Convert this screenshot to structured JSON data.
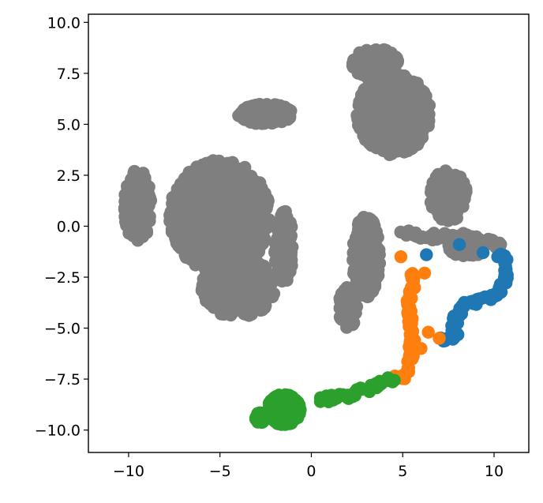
{
  "chart_data": {
    "type": "scatter",
    "title": "",
    "xlabel": "",
    "ylabel": "",
    "xlim": [
      -12.2,
      11.9
    ],
    "ylim": [
      -11.1,
      10.4
    ],
    "x_ticks": [
      -10,
      -5,
      0,
      5,
      10
    ],
    "x_tick_labels": [
      "−10",
      "−5",
      "0",
      "5",
      "10"
    ],
    "y_ticks": [
      -10.0,
      -7.5,
      -5.0,
      -2.5,
      0.0,
      2.5,
      5.0,
      7.5,
      10.0
    ],
    "y_tick_labels": [
      "−10.0",
      "−7.5",
      "−5.0",
      "−2.5",
      "0.0",
      "2.5",
      "5.0",
      "7.5",
      "10.0"
    ],
    "grid": false,
    "legend": "none",
    "series": [
      {
        "color": "#7f7f7f",
        "regions": [
          {
            "center": [
              -5.0,
              0.5
            ],
            "spread": [
              5.5,
              5.5
            ],
            "count": 1100
          },
          {
            "center": [
              -4.0,
              -3.0
            ],
            "spread": [
              4.0,
              3.0
            ],
            "count": 300
          },
          {
            "center": [
              -9.5,
              1.0
            ],
            "spread": [
              1.5,
              3.5
            ],
            "count": 150
          },
          {
            "center": [
              -2.5,
              5.5
            ],
            "spread": [
              3.0,
              1.0
            ],
            "count": 120
          },
          {
            "center": [
              -1.5,
              -1.0
            ],
            "spread": [
              1.0,
              3.5
            ],
            "count": 140
          },
          {
            "center": [
              4.5,
              5.5
            ],
            "spread": [
              4.0,
              4.0
            ],
            "count": 700
          },
          {
            "center": [
              3.5,
              8.0
            ],
            "spread": [
              2.5,
              1.5
            ],
            "count": 150
          },
          {
            "center": [
              7.5,
              1.5
            ],
            "spread": [
              2.0,
              2.5
            ],
            "count": 150
          },
          {
            "center": [
              3.0,
              -1.5
            ],
            "spread": [
              1.5,
              4.0
            ],
            "count": 200
          },
          {
            "center": [
              2.0,
              -4.0
            ],
            "spread": [
              1.0,
              2.0
            ],
            "count": 60
          },
          {
            "center": [
              8.5,
              -1.0
            ],
            "spread": [
              2.0,
              1.0
            ],
            "count": 60
          }
        ],
        "path": [
          [
            5.0,
            -0.3
          ],
          [
            6.5,
            -0.5
          ],
          [
            8.0,
            -0.5
          ],
          [
            9.5,
            -0.7
          ],
          [
            10.5,
            -1.0
          ]
        ]
      },
      {
        "color": "#1f77b4",
        "path": [
          [
            10.5,
            -1.5
          ],
          [
            10.7,
            -2.5
          ],
          [
            10.0,
            -3.5
          ],
          [
            8.5,
            -3.8
          ],
          [
            7.8,
            -4.5
          ],
          [
            7.9,
            -5.4
          ],
          [
            7.2,
            -5.5
          ]
        ],
        "points": [
          [
            8.1,
            -0.9
          ],
          [
            9.4,
            -1.3
          ],
          [
            6.3,
            -1.4
          ],
          [
            10.2,
            -1.5
          ]
        ]
      },
      {
        "color": "#ff7f0e",
        "path": [
          [
            5.6,
            -2.3
          ],
          [
            5.4,
            -3.8
          ],
          [
            5.5,
            -5.0
          ],
          [
            5.5,
            -6.2
          ],
          [
            5.2,
            -7.3
          ],
          [
            4.5,
            -7.5
          ]
        ],
        "points": [
          [
            4.9,
            -1.5
          ],
          [
            6.2,
            -2.3
          ],
          [
            6.4,
            -5.2
          ],
          [
            7.0,
            -5.5
          ],
          [
            6.0,
            -6.0
          ]
        ]
      },
      {
        "color": "#2ca02c",
        "regions": [
          {
            "center": [
              -1.5,
              -9.0
            ],
            "spread": [
              1.8,
              1.5
            ],
            "count": 450
          },
          {
            "center": [
              -2.8,
              -9.4
            ],
            "spread": [
              0.5,
              0.5
            ],
            "count": 60
          }
        ],
        "path": [
          [
            0.5,
            -8.5
          ],
          [
            2.0,
            -8.3
          ],
          [
            3.5,
            -7.8
          ],
          [
            4.4,
            -7.5
          ]
        ]
      }
    ]
  }
}
